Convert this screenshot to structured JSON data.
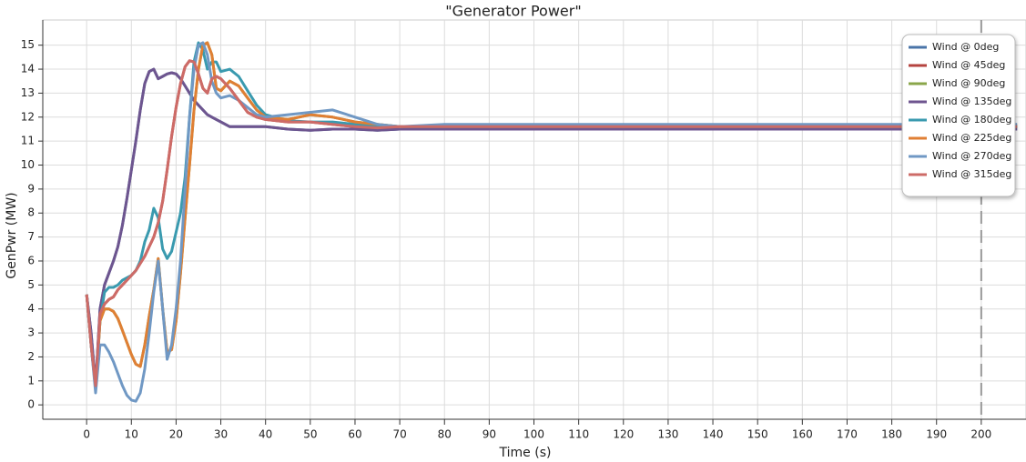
{
  "chart_data": {
    "type": "line",
    "title": "\"Generator Power\"",
    "x_label": "Time (s)",
    "y_label": "GenPwr (MW)",
    "x": [
      0,
      1,
      2,
      3,
      4,
      5,
      6,
      7,
      8,
      9,
      10,
      11,
      12,
      13,
      14,
      15,
      16,
      17,
      18,
      19,
      20,
      21,
      22,
      23,
      24,
      25,
      26,
      27,
      28,
      29,
      30,
      32,
      34,
      36,
      38,
      40,
      45,
      50,
      55,
      60,
      65,
      70,
      80,
      100,
      120,
      140,
      160,
      180,
      200,
      208
    ],
    "series": [
      {
        "name": "Wind @ 0deg",
        "color": "#4a74a8",
        "values": [
          4.6,
          3,
          0.8,
          4,
          5,
          5.5,
          6,
          6.6,
          7.5,
          8.6,
          9.8,
          11,
          12.3,
          13.4,
          13.9,
          14,
          13.6,
          13.7,
          13.8,
          13.85,
          13.8,
          13.6,
          13.3,
          13,
          12.7,
          12.5,
          12.3,
          12.1,
          12,
          11.9,
          11.8,
          11.6,
          11.6,
          11.6,
          11.6,
          11.6,
          11.5,
          11.45,
          11.5,
          11.5,
          11.45,
          11.5,
          11.5,
          11.5,
          11.5,
          11.5,
          11.5,
          11.5,
          11.5,
          11.5
        ]
      },
      {
        "name": "Wind @ 45deg",
        "color": "#b5433f",
        "values": [
          4.6,
          2.5,
          0.8,
          3.8,
          4.2,
          4.4,
          4.5,
          4.8,
          5,
          5.2,
          5.4,
          5.6,
          5.9,
          6.2,
          6.6,
          7,
          7.6,
          8.5,
          9.8,
          11.2,
          12.4,
          13.4,
          14.1,
          14.35,
          14.3,
          13.8,
          13.2,
          13,
          13.6,
          13.7,
          13.6,
          13.2,
          12.7,
          12.2,
          12,
          11.9,
          11.8,
          11.8,
          11.7,
          11.6,
          11.55,
          11.6,
          11.6,
          11.6,
          11.6,
          11.6,
          11.6,
          11.6,
          11.6,
          11.6
        ]
      },
      {
        "name": "Wind @ 90deg",
        "color": "#8aa64a",
        "values": [
          4.6,
          2.5,
          0.7,
          3.5,
          4,
          4,
          3.9,
          3.6,
          3.1,
          2.6,
          2.1,
          1.7,
          1.6,
          2.5,
          3.7,
          4.8,
          6.1,
          4,
          2.2,
          2.3,
          3.5,
          5.5,
          7.8,
          10,
          12.3,
          14,
          15,
          15.1,
          14.6,
          13.2,
          13.1,
          13.5,
          13.3,
          12.8,
          12.3,
          12,
          11.9,
          12.1,
          12,
          11.8,
          11.7,
          11.6,
          11.6,
          11.6,
          11.6,
          11.6,
          11.6,
          11.6,
          11.6,
          11.6
        ]
      },
      {
        "name": "Wind @ 135deg",
        "color": "#6e558f",
        "values": [
          4.6,
          3,
          0.8,
          4,
          5,
          5.5,
          6,
          6.6,
          7.5,
          8.6,
          9.8,
          11,
          12.3,
          13.4,
          13.9,
          14,
          13.6,
          13.7,
          13.8,
          13.85,
          13.8,
          13.6,
          13.3,
          13,
          12.7,
          12.5,
          12.3,
          12.1,
          12,
          11.9,
          11.8,
          11.6,
          11.6,
          11.6,
          11.6,
          11.6,
          11.5,
          11.45,
          11.5,
          11.5,
          11.45,
          11.5,
          11.5,
          11.5,
          11.5,
          11.5,
          11.5,
          11.5,
          11.5,
          11.5
        ]
      },
      {
        "name": "Wind @ 180deg",
        "color": "#3a9aaf",
        "values": [
          4.6,
          2.5,
          0.7,
          3.5,
          4.7,
          4.9,
          4.9,
          5,
          5.2,
          5.3,
          5.4,
          5.6,
          6,
          6.8,
          7.3,
          8.2,
          7.8,
          6.5,
          6.1,
          6.4,
          7.2,
          8,
          9.5,
          12,
          14.3,
          15.1,
          14.8,
          14,
          14.3,
          14.3,
          13.9,
          14,
          13.7,
          13.1,
          12.5,
          12.1,
          11.85,
          11.8,
          11.8,
          11.7,
          11.65,
          11.6,
          11.6,
          11.6,
          11.6,
          11.6,
          11.6,
          11.6,
          11.6,
          11.6
        ]
      },
      {
        "name": "Wind @ 225deg",
        "color": "#e07f34",
        "values": [
          4.6,
          2.5,
          0.7,
          3.5,
          4,
          4,
          3.9,
          3.6,
          3.1,
          2.6,
          2.1,
          1.7,
          1.6,
          2.5,
          3.7,
          4.8,
          6.1,
          4,
          2.2,
          2.3,
          3.5,
          5.5,
          7.8,
          10,
          12.3,
          14,
          15,
          15.1,
          14.6,
          13.2,
          13.1,
          13.5,
          13.3,
          12.8,
          12.3,
          12,
          11.9,
          12.1,
          12,
          11.8,
          11.7,
          11.6,
          11.65,
          11.65,
          11.65,
          11.65,
          11.65,
          11.65,
          11.65,
          11.65
        ]
      },
      {
        "name": "Wind @ 270deg",
        "color": "#7098c4",
        "values": [
          4.6,
          2.5,
          0.5,
          2.5,
          2.5,
          2.2,
          1.8,
          1.3,
          0.8,
          0.4,
          0.2,
          0.15,
          0.5,
          1.5,
          3,
          4.7,
          6,
          4,
          1.9,
          2.5,
          4,
          6,
          9,
          12,
          14,
          15,
          15.1,
          14.6,
          13.5,
          13,
          12.8,
          12.9,
          12.7,
          12.4,
          12.1,
          12,
          12.1,
          12.2,
          12.3,
          12,
          11.7,
          11.6,
          11.7,
          11.7,
          11.7,
          11.7,
          11.7,
          11.7,
          11.7,
          11.7
        ]
      },
      {
        "name": "Wind @ 315deg",
        "color": "#cd6b67",
        "values": [
          4.6,
          2.5,
          0.8,
          3.8,
          4.2,
          4.4,
          4.5,
          4.8,
          5,
          5.2,
          5.4,
          5.6,
          5.9,
          6.2,
          6.6,
          7,
          7.6,
          8.5,
          9.8,
          11.2,
          12.4,
          13.4,
          14.1,
          14.35,
          14.3,
          13.8,
          13.2,
          13,
          13.6,
          13.7,
          13.6,
          13.2,
          12.7,
          12.2,
          12,
          11.9,
          11.8,
          11.8,
          11.7,
          11.6,
          11.55,
          11.6,
          11.6,
          11.6,
          11.6,
          11.6,
          11.6,
          11.6,
          11.6,
          11.6
        ]
      }
    ],
    "xlim": [
      -9.8,
      210
    ],
    "ylim": [
      -0.6,
      16.05
    ],
    "xticks": [
      0,
      10,
      20,
      30,
      40,
      50,
      60,
      70,
      80,
      90,
      100,
      110,
      120,
      130,
      140,
      150,
      160,
      170,
      180,
      190,
      200
    ],
    "yticks": [
      0,
      1,
      2,
      3,
      4,
      5,
      6,
      7,
      8,
      9,
      10,
      11,
      12,
      13,
      14,
      15
    ],
    "vline": 200,
    "grid": true,
    "legend": "upper right"
  }
}
